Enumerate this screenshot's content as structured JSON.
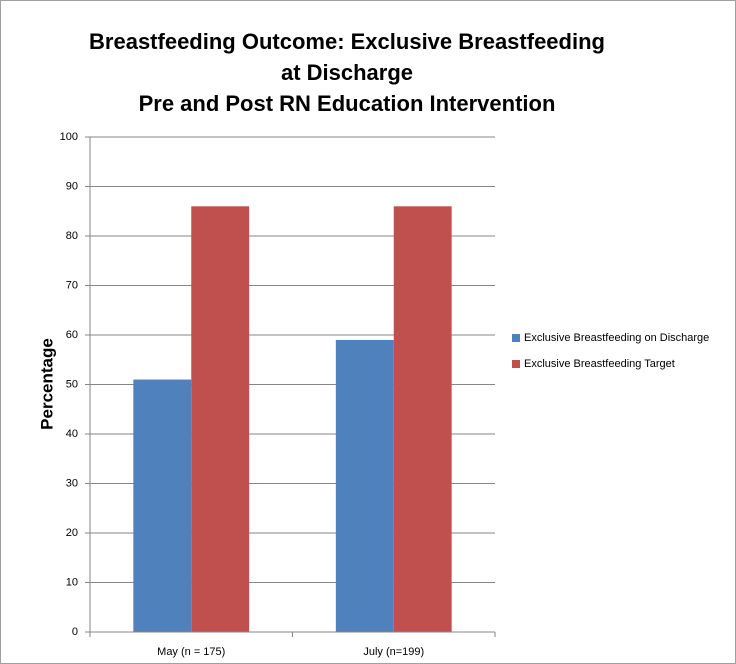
{
  "chart_data": {
    "type": "bar",
    "title": "Breastfeeding Outcome: Exclusive Breastfeeding at Discharge",
    "subtitle": "Pre and Post RN Education Intervention",
    "y_label": "Percentage",
    "categories": [
      "May  (n = 175)",
      "July (n=199)"
    ],
    "series": [
      {
        "name": "Exclusive Breastfeeding on Discharge",
        "color": "#4f81bd",
        "values": [
          51,
          59
        ]
      },
      {
        "name": "Exclusive Breastfeeding Target",
        "color": "#c0504d",
        "values": [
          86,
          86
        ]
      }
    ],
    "ylim": [
      0,
      100
    ],
    "yticks": [
      0,
      10,
      20,
      30,
      40,
      50,
      60,
      70,
      80,
      90,
      100
    ],
    "grid": true,
    "legend": "right"
  }
}
